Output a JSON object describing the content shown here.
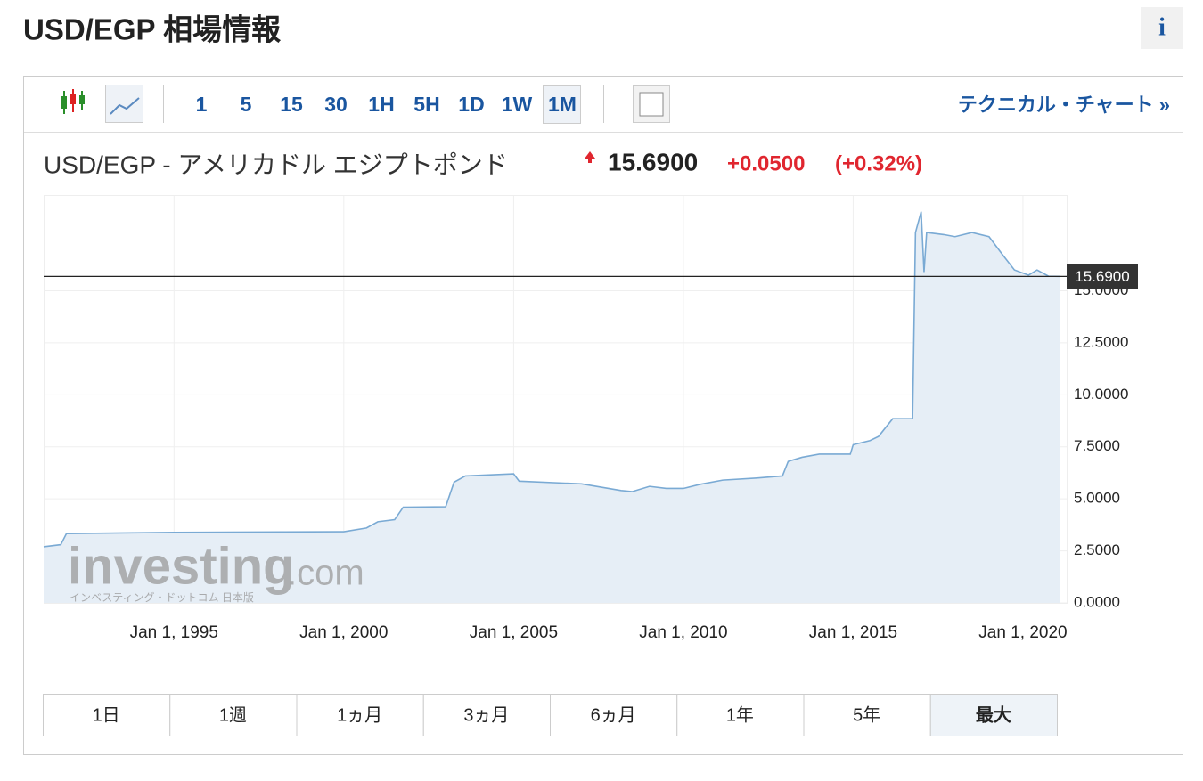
{
  "header": {
    "title": "USD/EGP 相場情報",
    "info": "i"
  },
  "toolbar": {
    "intervals": [
      "1",
      "5",
      "15",
      "30",
      "1H",
      "5H",
      "1D",
      "1W",
      "1M"
    ],
    "selected": "1M",
    "link": "テクニカル・チャート »"
  },
  "chart_data": {
    "type": "line",
    "title": "USD/EGP - アメリカドル エジプトポンド",
    "price": "15.6900",
    "change": "+0.0500",
    "change_pct": "(+0.32%)",
    "last_price": 15.69,
    "color": "#7aaad4",
    "area_color": "#e6eef6",
    "grid": true,
    "x": [
      "1991-03-01",
      "1991-09-01",
      "1991-11-01",
      "1995-01-01",
      "2000-01-01",
      "2000-09-01",
      "2001-01-01",
      "2001-07-01",
      "2001-10-01",
      "2003-01-01",
      "2003-04-01",
      "2003-08-01",
      "2005-01-01",
      "2005-03-01",
      "2007-01-01",
      "2008-03-01",
      "2008-07-01",
      "2009-01-01",
      "2009-07-01",
      "2010-01-01",
      "2010-07-01",
      "2011-03-01",
      "2012-03-01",
      "2012-12-01",
      "2013-02-01",
      "2013-07-01",
      "2014-01-01",
      "2014-12-01",
      "2015-01-01",
      "2015-07-01",
      "2015-10-01",
      "2016-03-01",
      "2016-10-01",
      "2016-11-01",
      "2017-01-01",
      "2017-02-01",
      "2017-03-01",
      "2017-09-01",
      "2018-01-01",
      "2018-07-01",
      "2019-01-01",
      "2019-06-01",
      "2019-10-01",
      "2020-03-01",
      "2020-06-01",
      "2020-10-01",
      "2021-02-01"
    ],
    "values": [
      2.7,
      2.8,
      3.33,
      3.39,
      3.42,
      3.6,
      3.9,
      4.0,
      4.6,
      4.62,
      5.8,
      6.1,
      6.2,
      5.85,
      5.72,
      5.4,
      5.35,
      5.6,
      5.5,
      5.5,
      5.7,
      5.9,
      6.0,
      6.1,
      6.8,
      7.0,
      7.15,
      7.15,
      7.6,
      7.8,
      8.0,
      8.85,
      8.85,
      17.8,
      18.8,
      15.9,
      17.8,
      17.7,
      17.6,
      17.8,
      17.6,
      16.7,
      16.0,
      15.75,
      16.0,
      15.7,
      15.69
    ],
    "xlim": [
      "1991-03-01",
      "2021-04-15"
    ],
    "xticks": [
      {
        "value": "1995-01-01",
        "label": "Jan 1, 1995"
      },
      {
        "value": "2000-01-01",
        "label": "Jan 1, 2000"
      },
      {
        "value": "2005-01-01",
        "label": "Jan 1, 2005"
      },
      {
        "value": "2010-01-01",
        "label": "Jan 1, 2010"
      },
      {
        "value": "2015-01-01",
        "label": "Jan 1, 2015"
      },
      {
        "value": "2020-01-01",
        "label": "Jan 1, 2020"
      }
    ],
    "ylim": [
      0,
      19.6
    ],
    "yticks": [
      {
        "value": 0,
        "label": "0.0000"
      },
      {
        "value": 2.5,
        "label": "2.5000"
      },
      {
        "value": 5,
        "label": "5.0000"
      },
      {
        "value": 7.5,
        "label": "7.5000"
      },
      {
        "value": 10,
        "label": "10.0000"
      },
      {
        "value": 12.5,
        "label": "12.5000"
      },
      {
        "value": 15,
        "label": "15.0000"
      }
    ],
    "watermark": {
      "brand": "investing",
      "suffix": ".com",
      "tagline": "インベスティング・ドットコム 日本版"
    }
  },
  "ranges": {
    "buttons": [
      "1日",
      "1週",
      "1ヵ月",
      "3ヵ月",
      "6ヵ月",
      "1年",
      "5年",
      "最大"
    ],
    "selected": "最大"
  }
}
